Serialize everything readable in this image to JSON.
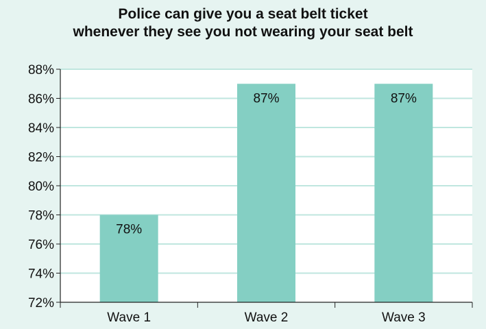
{
  "chart_data": {
    "type": "bar",
    "title_lines": [
      "Police can give you a seat belt ticket",
      "whenever they see you not wearing your seat belt"
    ],
    "categories": [
      "Wave 1",
      "Wave 2",
      "Wave 3"
    ],
    "values": [
      78,
      87,
      87
    ],
    "data_labels": [
      "78%",
      "87%",
      "87%"
    ],
    "ylim": [
      72,
      88
    ],
    "yticks": [
      72,
      74,
      76,
      78,
      80,
      82,
      84,
      86,
      88
    ],
    "ytick_labels": [
      "72%",
      "74%",
      "76%",
      "78%",
      "80%",
      "82%",
      "84%",
      "86%",
      "88%"
    ],
    "xlabel": "",
    "ylabel": "",
    "grid": true,
    "legend": "none"
  },
  "colors": {
    "background": "#e6f4f1",
    "plot_area": "#ffffff",
    "bar": "#84cfc3",
    "gridline": "#bfe6df",
    "axis": "#222222"
  }
}
